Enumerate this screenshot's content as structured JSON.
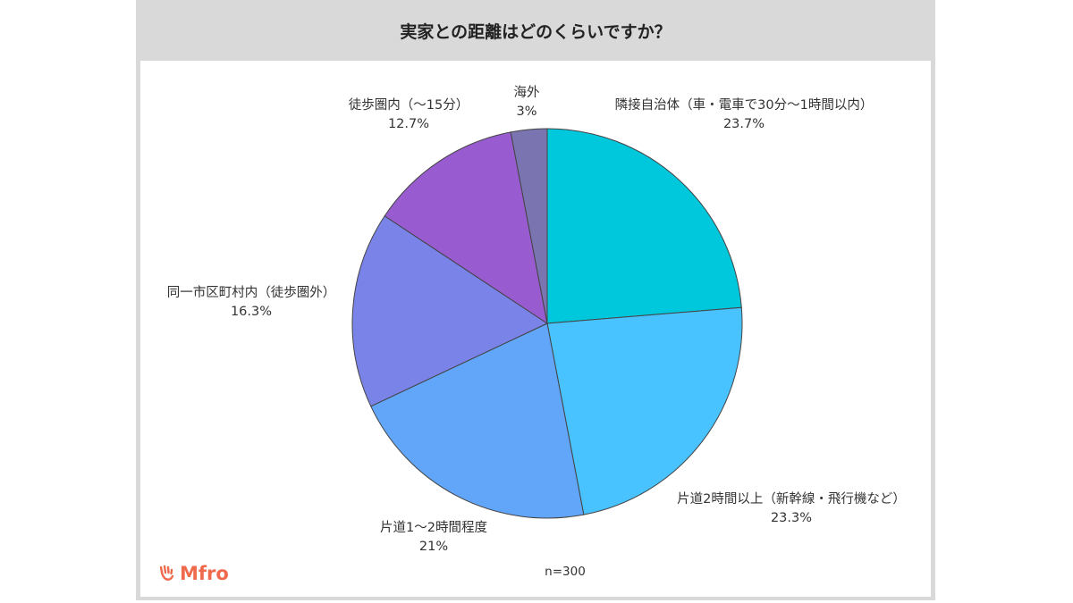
{
  "title": "実家との距離はどのくらいですか？",
  "sample_note": "n=300",
  "logo": {
    "text": "Mfro",
    "icon": "hand-wave-icon",
    "color": "#ef6a4d"
  },
  "chart_data": {
    "type": "pie",
    "title": "実家との距離はどのくらいですか？",
    "start": "12 o'clock, clockwise",
    "slices": [
      {
        "label": "隣接自治体（車・電車で30分〜1時間以内）",
        "value": 23.7,
        "value_text": "23.7%",
        "color": "#00c8dc"
      },
      {
        "label": "片道2時間以上（新幹線・飛行機など）",
        "value": 23.3,
        "value_text": "23.3%",
        "color": "#48c3ff"
      },
      {
        "label": "片道1〜2時間程度",
        "value": 21,
        "value_text": "21%",
        "color": "#62a6fa"
      },
      {
        "label": "同一市区町村内（徒歩圏外）",
        "value": 16.3,
        "value_text": "16.3%",
        "color": "#7a83e8"
      },
      {
        "label": "徒歩圏内（〜15分）",
        "value": 12.7,
        "value_text": "12.7%",
        "color": "#985cd0"
      },
      {
        "label": "海外",
        "value": 3,
        "value_text": "3%",
        "color": "#7a74b1"
      }
    ]
  }
}
